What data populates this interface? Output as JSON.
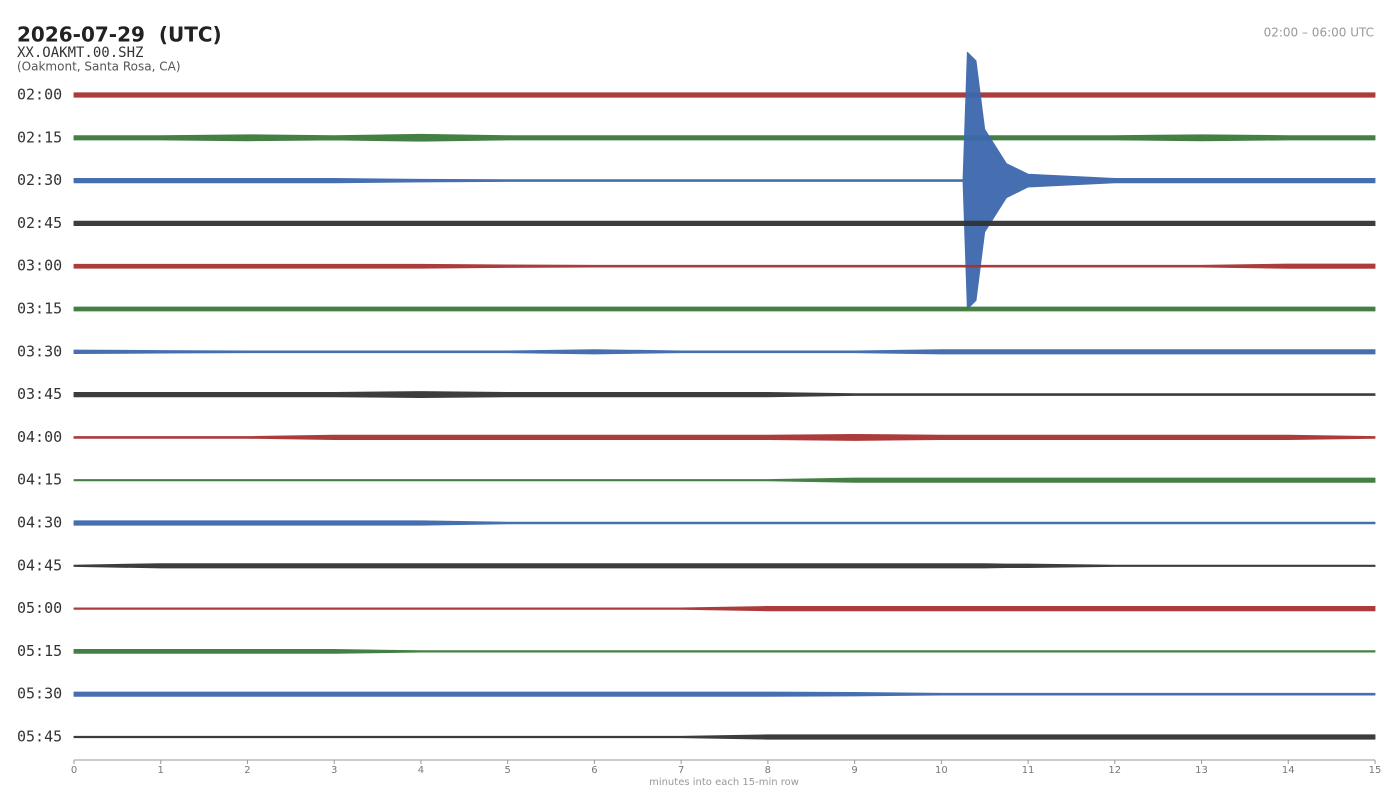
{
  "chart_data": {
    "type": "helicorder",
    "title": "2026-07-29  (UTC)",
    "station": "XX.OAKMT.00.SHZ",
    "location": "(Oakmont, Santa Rosa, CA)",
    "time_range": "02:00 – 06:00 UTC",
    "xlabel": "minutes into each 15-min row",
    "xlim": [
      0,
      15
    ],
    "xticks": [
      0,
      1,
      2,
      3,
      4,
      5,
      6,
      7,
      8,
      9,
      10,
      11,
      12,
      13,
      14,
      15
    ],
    "categories": [
      "02:00",
      "02:15",
      "02:30",
      "02:45",
      "03:00",
      "03:15",
      "03:30",
      "03:45",
      "04:00",
      "04:15",
      "04:30",
      "04:45",
      "05:00",
      "05:15",
      "05:30",
      "05:45"
    ],
    "x": [
      0,
      1,
      2,
      3,
      4,
      5,
      6,
      7,
      8,
      9,
      10,
      10.25,
      10.3,
      10.4,
      10.5,
      10.75,
      11,
      12,
      13,
      14,
      15
    ],
    "series": [
      {
        "color": "#a83232",
        "values": [
          0.05,
          0.05,
          0.05,
          0.05,
          0.05,
          0.05,
          0.05,
          0.05,
          0.05,
          0.05,
          0.05,
          0.05,
          0.05,
          0.05,
          0.05,
          0.05,
          0.05,
          0.05,
          0.05,
          0.05,
          0.05
        ]
      },
      {
        "color": "#3a7a3a",
        "values": [
          0.05,
          0.05,
          0.07,
          0.05,
          0.08,
          0.05,
          0.05,
          0.05,
          0.05,
          0.05,
          0.05,
          0.05,
          0.05,
          0.05,
          0.05,
          0.05,
          0.05,
          0.05,
          0.07,
          0.05,
          0.05
        ]
      },
      {
        "color": "#3d68ad",
        "values": [
          0.05,
          0.05,
          0.05,
          0.05,
          0.03,
          0.02,
          0.02,
          0.02,
          0.02,
          0.02,
          0.02,
          0.02,
          3.0,
          2.8,
          1.2,
          0.4,
          0.15,
          0.05,
          0.05,
          0.05,
          0.05
        ]
      },
      {
        "color": "#333333",
        "values": [
          0.05,
          0.05,
          0.05,
          0.05,
          0.05,
          0.05,
          0.05,
          0.05,
          0.05,
          0.05,
          0.05,
          0.05,
          0.05,
          0.05,
          0.05,
          0.05,
          0.05,
          0.05,
          0.05,
          0.05,
          0.05
        ]
      },
      {
        "color": "#a83232",
        "values": [
          0.045,
          0.045,
          0.045,
          0.045,
          0.045,
          0.03,
          0.02,
          0.02,
          0.02,
          0.02,
          0.02,
          0.02,
          0.02,
          0.02,
          0.02,
          0.02,
          0.02,
          0.02,
          0.02,
          0.05,
          0.05
        ]
      },
      {
        "color": "#3a7a3a",
        "values": [
          0.045,
          0.045,
          0.045,
          0.045,
          0.045,
          0.045,
          0.045,
          0.045,
          0.045,
          0.045,
          0.045,
          0.045,
          0.045,
          0.045,
          0.045,
          0.045,
          0.045,
          0.045,
          0.045,
          0.045,
          0.045
        ]
      },
      {
        "color": "#3d68ad",
        "values": [
          0.04,
          0.03,
          0.02,
          0.02,
          0.02,
          0.02,
          0.05,
          0.02,
          0.02,
          0.02,
          0.05,
          0.05,
          0.05,
          0.05,
          0.05,
          0.05,
          0.05,
          0.05,
          0.05,
          0.05,
          0.05
        ]
      },
      {
        "color": "#333333",
        "values": [
          0.05,
          0.05,
          0.05,
          0.05,
          0.07,
          0.05,
          0.05,
          0.05,
          0.05,
          0.02,
          0.02,
          0.02,
          0.02,
          0.02,
          0.02,
          0.02,
          0.02,
          0.02,
          0.02,
          0.02,
          0.02
        ]
      },
      {
        "color": "#a83232",
        "values": [
          0.02,
          0.02,
          0.02,
          0.05,
          0.05,
          0.05,
          0.05,
          0.05,
          0.05,
          0.07,
          0.05,
          0.05,
          0.05,
          0.05,
          0.05,
          0.05,
          0.05,
          0.05,
          0.05,
          0.05,
          0.02
        ]
      },
      {
        "color": "#3a7a3a",
        "values": [
          0.015,
          0.015,
          0.015,
          0.015,
          0.015,
          0.015,
          0.015,
          0.015,
          0.015,
          0.05,
          0.05,
          0.05,
          0.05,
          0.05,
          0.05,
          0.05,
          0.05,
          0.05,
          0.05,
          0.05,
          0.05
        ]
      },
      {
        "color": "#3d68ad",
        "values": [
          0.05,
          0.05,
          0.05,
          0.05,
          0.05,
          0.02,
          0.02,
          0.02,
          0.02,
          0.02,
          0.02,
          0.02,
          0.02,
          0.02,
          0.02,
          0.02,
          0.02,
          0.02,
          0.02,
          0.02,
          0.02
        ]
      },
      {
        "color": "#333333",
        "values": [
          0.015,
          0.05,
          0.05,
          0.05,
          0.05,
          0.05,
          0.05,
          0.05,
          0.05,
          0.05,
          0.05,
          0.05,
          0.05,
          0.05,
          0.05,
          0.04,
          0.04,
          0.015,
          0.015,
          0.015,
          0.015
        ]
      },
      {
        "color": "#a83232",
        "values": [
          0.015,
          0.015,
          0.015,
          0.015,
          0.015,
          0.015,
          0.015,
          0.015,
          0.05,
          0.05,
          0.05,
          0.05,
          0.05,
          0.05,
          0.05,
          0.05,
          0.05,
          0.05,
          0.05,
          0.05,
          0.05
        ]
      },
      {
        "color": "#3a7a3a",
        "values": [
          0.045,
          0.045,
          0.045,
          0.045,
          0.015,
          0.015,
          0.015,
          0.015,
          0.015,
          0.015,
          0.015,
          0.015,
          0.015,
          0.015,
          0.015,
          0.015,
          0.015,
          0.015,
          0.015,
          0.015,
          0.015
        ]
      },
      {
        "color": "#3d68ad",
        "values": [
          0.05,
          0.05,
          0.05,
          0.05,
          0.05,
          0.05,
          0.05,
          0.05,
          0.05,
          0.04,
          0.02,
          0.02,
          0.02,
          0.02,
          0.02,
          0.02,
          0.02,
          0.02,
          0.02,
          0.02,
          0.02
        ]
      },
      {
        "color": "#333333",
        "values": [
          0.015,
          0.015,
          0.015,
          0.015,
          0.015,
          0.015,
          0.015,
          0.015,
          0.05,
          0.05,
          0.05,
          0.05,
          0.05,
          0.05,
          0.05,
          0.05,
          0.05,
          0.05,
          0.05,
          0.05,
          0.05
        ]
      }
    ]
  }
}
